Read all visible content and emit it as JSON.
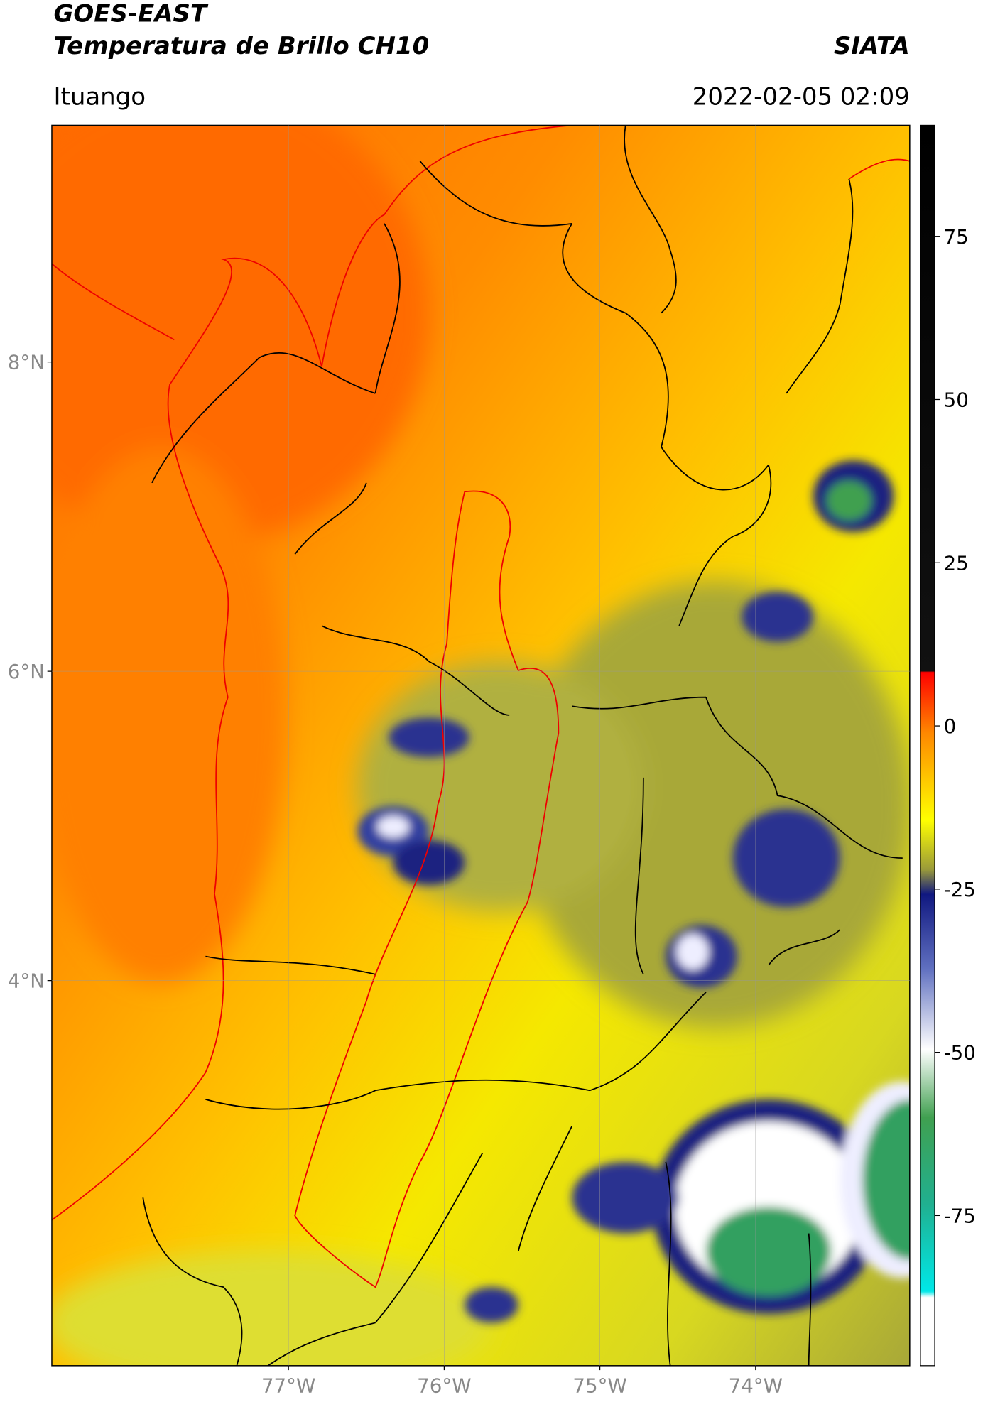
{
  "header": {
    "title": "GOES-EAST",
    "subtitle": "Temperatura de Brillo CH10",
    "brand": "SIATA",
    "location": "Ituango",
    "timestamp": "2022-02-05 02:09"
  },
  "map": {
    "lon_range": [
      -78.52,
      -73.01
    ],
    "lat_range": [
      1.51,
      9.53
    ],
    "lat_ticks": [
      {
        "value": 8,
        "label": "8°N"
      },
      {
        "value": 6,
        "label": "6°N"
      },
      {
        "value": 4,
        "label": "4°N"
      }
    ],
    "lon_ticks": [
      {
        "value": -77,
        "label": "77°W"
      },
      {
        "value": -76,
        "label": "76°W"
      },
      {
        "value": -75,
        "label": "75°W"
      },
      {
        "value": -74,
        "label": "74°W"
      }
    ]
  },
  "colorbar": {
    "range": [
      -98,
      92
    ],
    "ticks": [
      75,
      50,
      25,
      0,
      -25,
      -50,
      -75
    ]
  }
}
